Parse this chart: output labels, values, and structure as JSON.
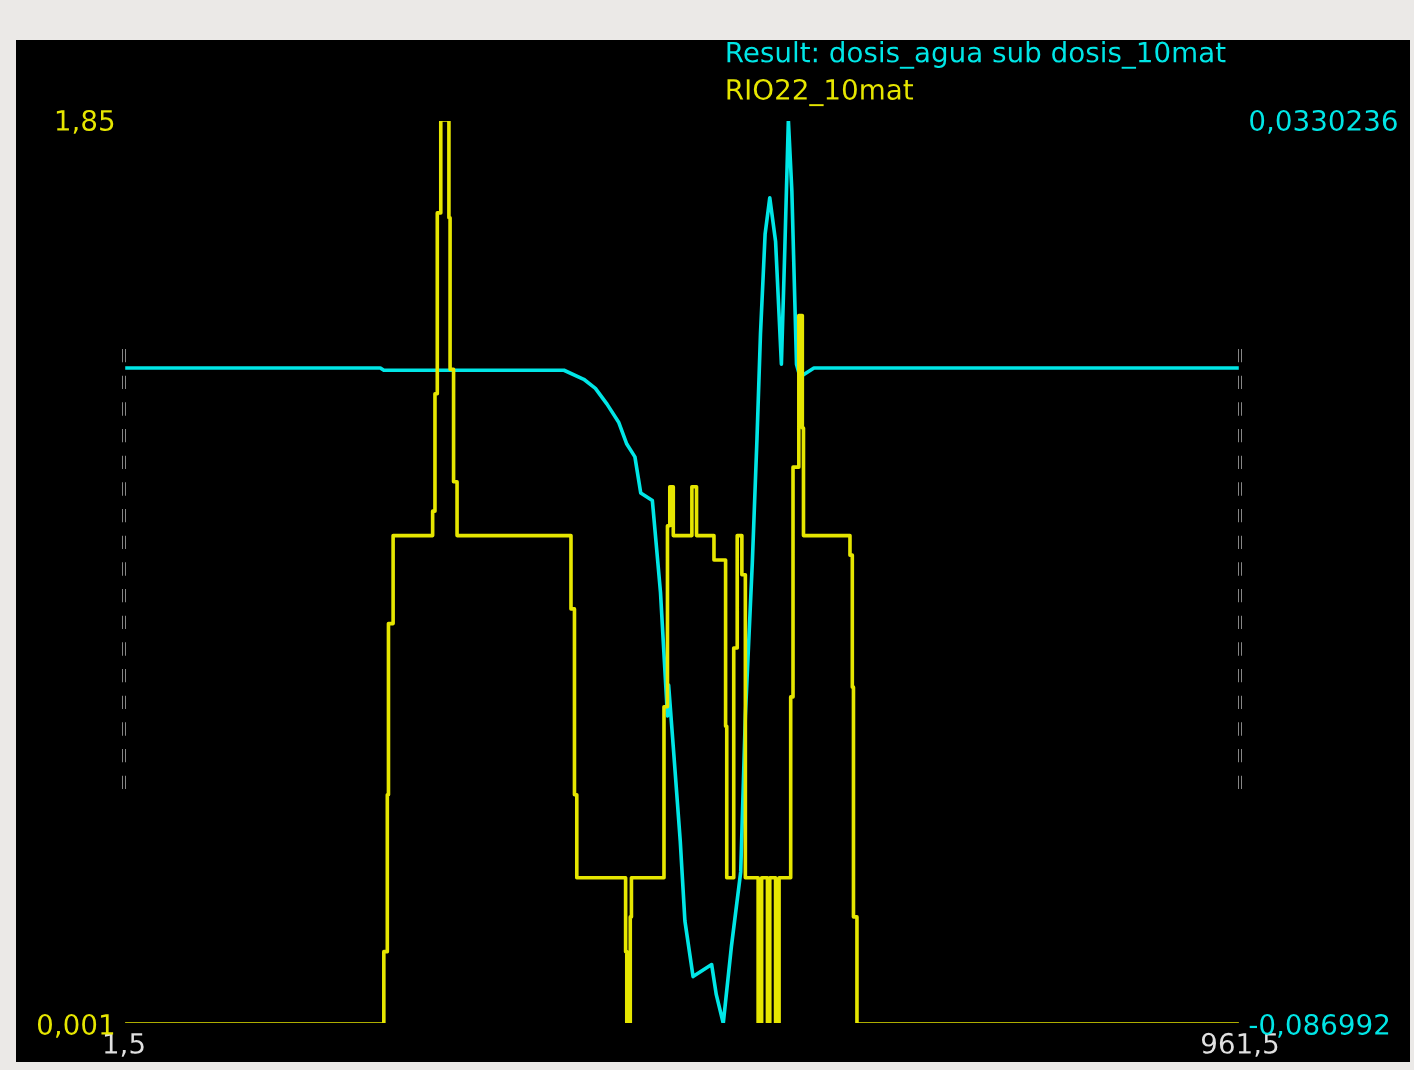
{
  "chart_data": {
    "type": "line",
    "xlim": [
      1.5,
      961.5
    ],
    "xticks": [
      {
        "value": 1.5,
        "label": "1,5"
      },
      {
        "value": 961.5,
        "label": "961,5"
      }
    ],
    "ylim": [
      -0.086992,
      0.0330236
    ],
    "yticks": [
      {
        "value": -0.086992,
        "label": "-0,086992"
      },
      {
        "value": 0.0330236,
        "label": "0,0330236"
      }
    ],
    "y2lim": [
      0.001,
      1.85
    ],
    "y2ticks": [
      {
        "value": 0.001,
        "label": "0,001"
      },
      {
        "value": 1.85,
        "label": "1,85"
      }
    ],
    "legend": "top right",
    "grid": false,
    "ref_lines": [
      {
        "axis": "x",
        "value": 1.5,
        "color": "#ffffff",
        "line_style": "dashed"
      },
      {
        "axis": "x",
        "value": 961.5,
        "color": "#ffffff",
        "line_style": "dashed"
      }
    ],
    "series": [
      {
        "name": "Result: dosis_agua sub dosis_10mat",
        "color": "#00e6e6",
        "x": [
          1.5,
          222,
          225,
          380,
          397,
          407,
          417,
          427,
          434,
          441,
          446,
          456,
          463,
          469,
          470,
          474,
          480,
          484,
          491,
          507,
          511,
          517,
          524,
          532,
          536,
          542,
          546,
          549,
          553,
          557,
          562,
          567,
          570,
          573,
          576,
          580,
          583,
          595,
          961.5
        ],
        "values": [
          0.0001,
          0.0001,
          -0.0002,
          -0.0002,
          -0.0014,
          -0.0026,
          -0.0047,
          -0.0071,
          -0.01,
          -0.0117,
          -0.0165,
          -0.0175,
          -0.0297,
          -0.0461,
          -0.042,
          -0.0502,
          -0.0627,
          -0.0733,
          -0.0807,
          -0.0791,
          -0.0831,
          -0.0869,
          -0.0767,
          -0.0668,
          -0.0461,
          -0.0257,
          -0.0093,
          0.0046,
          0.0179,
          0.0227,
          0.0169,
          0.0006,
          0.0162,
          0.033,
          0.0236,
          0.0006,
          -0.0011,
          0.0001,
          0.0001
        ]
      },
      {
        "name": "RIO22_10mat",
        "color": "#e6e600",
        "type": "step",
        "axis": "y2",
        "x": [
          1.5,
          225,
          228,
          229,
          233,
          267,
          269,
          271,
          274,
          281,
          282,
          285,
          288,
          386,
          389,
          391,
          433,
          434,
          437,
          438,
          466,
          469,
          471,
          474,
          490,
          494,
          509,
          519,
          520,
          526,
          529,
          533,
          536,
          547,
          550,
          555,
          557,
          562,
          565,
          575,
          577,
          582,
          585,
          586,
          626,
          628,
          629,
          632,
          961.5
        ],
        "values": [
          0.001,
          0.149,
          0.47,
          0.82,
          1.0,
          1.05,
          1.29,
          1.66,
          1.85,
          1.65,
          1.34,
          1.11,
          1.0,
          0.85,
          0.47,
          0.3,
          0.149,
          0.001,
          0.22,
          0.3,
          0.65,
          1.02,
          1.1,
          1.0,
          1.1,
          1.0,
          0.95,
          0.61,
          0.3,
          0.77,
          1.0,
          0.92,
          0.3,
          0.001,
          0.3,
          0.001,
          0.3,
          0.001,
          0.3,
          0.67,
          1.14,
          1.45,
          1.22,
          1.0,
          0.96,
          0.69,
          0.22,
          0.001,
          0.001
        ]
      }
    ]
  }
}
